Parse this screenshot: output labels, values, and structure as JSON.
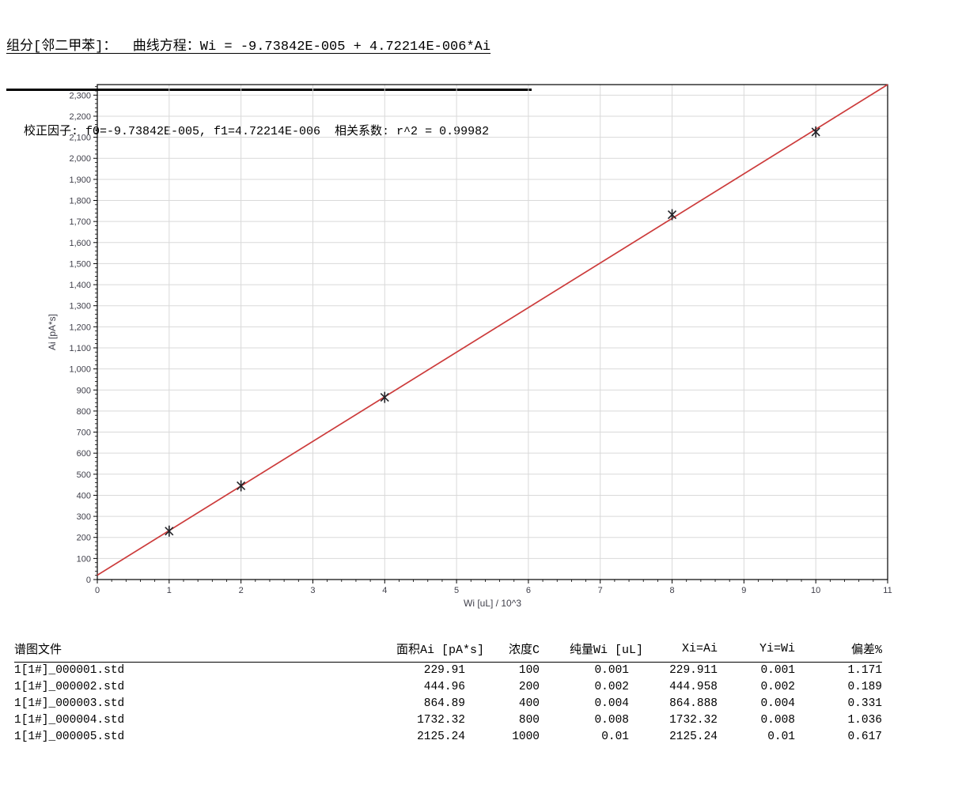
{
  "header": {
    "line1": "组分[邻二甲苯]：  曲线方程：Wi = -9.73842E-005 + 4.72214E-006*Ai",
    "line2": "校正因子: f0=-9.73842E-005, f1=4.72214E-006  相关系数: r^2 = 0.99982"
  },
  "chart_data": {
    "type": "scatter",
    "title": "",
    "xlabel": "Wi [uL] / 10^3",
    "ylabel": "Ai [pA*s]",
    "xlim": [
      0,
      11
    ],
    "ylim": [
      0,
      2350
    ],
    "x_major_ticks": [
      0,
      1,
      2,
      3,
      4,
      5,
      6,
      7,
      8,
      9,
      10,
      11
    ],
    "y_major_ticks": [
      0,
      100,
      200,
      300,
      400,
      500,
      600,
      700,
      800,
      900,
      1000,
      1100,
      1200,
      1300,
      1400,
      1500,
      1600,
      1700,
      1800,
      1900,
      2000,
      2100,
      2200,
      2300
    ],
    "x_minor_step": 0.2,
    "y_minor_step": 20,
    "grid": true,
    "legend": "none",
    "points": {
      "marker": "asterisk",
      "x": [
        1,
        2,
        4,
        8,
        10
      ],
      "y": [
        229.91,
        444.96,
        864.89,
        1732.32,
        2125.24
      ]
    },
    "fit_line": {
      "x": [
        0,
        11
      ],
      "y": [
        20.6,
        2350
      ]
    },
    "colors": {
      "line": "#cc3b3b",
      "marker": "#232328",
      "grid": "#d9d9d9",
      "axis_text": "#3f3f4a",
      "border": "#000000"
    }
  },
  "table": {
    "headers": [
      "谱图文件",
      "面积Ai [pA*s]",
      "浓度C",
      "纯量Wi [uL]",
      "Xi=Ai",
      "Yi=Wi",
      "偏差%"
    ],
    "rows": [
      [
        "1[1#]_000001.std",
        "229.91",
        "100",
        "0.001",
        "229.911",
        "0.001",
        "1.171"
      ],
      [
        "1[1#]_000002.std",
        "444.96",
        "200",
        "0.002",
        "444.958",
        "0.002",
        "0.189"
      ],
      [
        "1[1#]_000003.std",
        "864.89",
        "400",
        "0.004",
        "864.888",
        "0.004",
        "0.331"
      ],
      [
        "1[1#]_000004.std",
        "1732.32",
        "800",
        "0.008",
        "1732.32",
        "0.008",
        "1.036"
      ],
      [
        "1[1#]_000005.std",
        "2125.24",
        "1000",
        "0.01",
        "2125.24",
        "0.01",
        "0.617"
      ]
    ]
  }
}
